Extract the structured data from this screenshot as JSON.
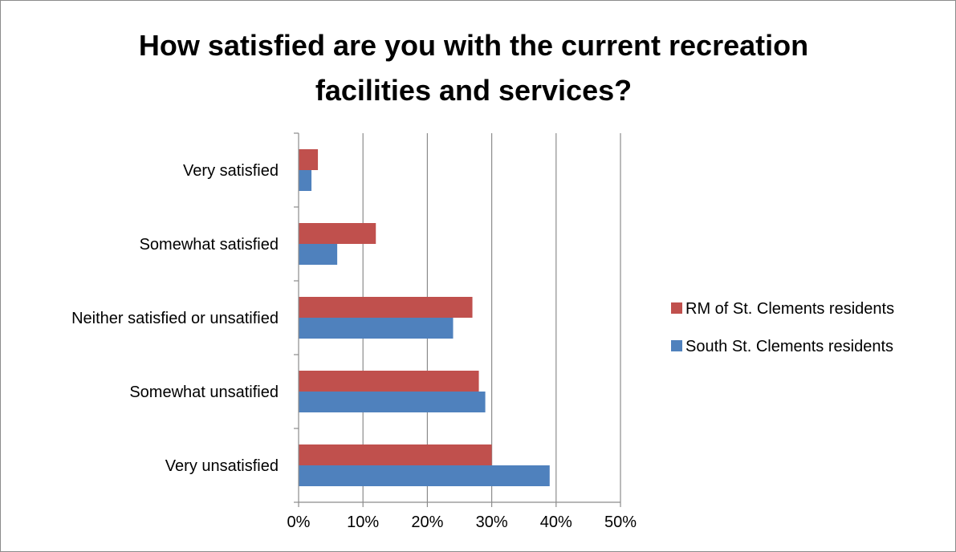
{
  "chart_data": {
    "type": "bar",
    "orientation": "horizontal",
    "title": "How satisfied are you with the current recreation facilities and services?",
    "title_lines": [
      "How satisfied are you with the current recreation",
      "facilities and services?"
    ],
    "categories": [
      "Very satisfied",
      "Somewhat satisfied",
      "Neither satisfied or unsatified",
      "Somewhat unsatified",
      "Very unsatisfied"
    ],
    "series": [
      {
        "name": "RM of St. Clements residents",
        "color": "#c0504d",
        "values": [
          3,
          12,
          27,
          28,
          30
        ]
      },
      {
        "name": "South St. Clements residents",
        "color": "#4f81bd",
        "values": [
          2,
          6,
          24,
          29,
          39
        ]
      }
    ],
    "xlim": [
      0,
      50
    ],
    "xticks": [
      "0%",
      "10%",
      "20%",
      "30%",
      "40%",
      "50%"
    ],
    "xtick_values": [
      0,
      10,
      20,
      30,
      40,
      50
    ],
    "grid": "vertical",
    "legend": "right"
  }
}
